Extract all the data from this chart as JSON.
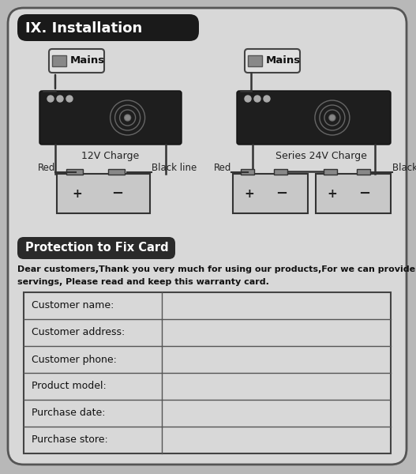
{
  "bg_color": "#b8b8b8",
  "page_bg": "#d2d2d2",
  "title_text": "IX. Installation",
  "title_bg": "#1a1a1a",
  "title_color": "#ffffff",
  "section2_title": "Protection to Fix Card",
  "section2_bg": "#2a2a2a",
  "section2_color": "#ffffff",
  "body_line1": "Dear customers,Thank you very much for using our products,For we can provide you the best",
  "body_line2": "servings, Please read and keep this warranty card.",
  "table_rows": [
    "Customer name:",
    "Customer address:",
    "Customer phone:",
    "Product model:",
    "Purchase date:",
    "Purchase store:"
  ],
  "charger1_label": "12V Charge",
  "charger2_label": "Series 24V Charge",
  "mains_label": "Mains",
  "red_label": "Red",
  "black_label": "Black line",
  "fig_w": 5.27,
  "fig_h": 6.0,
  "dpi": 100
}
